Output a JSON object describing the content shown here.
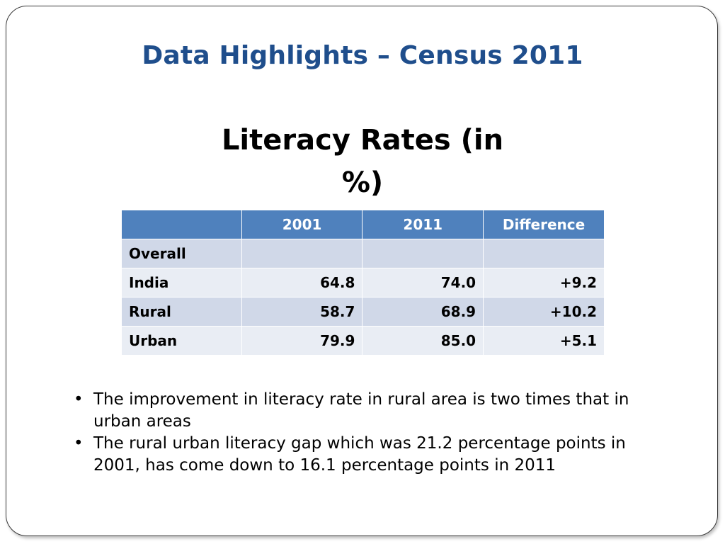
{
  "slide": {
    "title": "Data Highlights – Census 2011",
    "subtitle": "Literacy Rates (in %)"
  },
  "table": {
    "headers": [
      "",
      "2001",
      "2011",
      "Difference"
    ],
    "rows": [
      {
        "label": "Overall",
        "y2001": "",
        "y2011": "",
        "difference": ""
      },
      {
        "label": "India",
        "y2001": "64.8",
        "y2011": "74.0",
        "difference": "+9.2"
      },
      {
        "label": "Rural",
        "y2001": "58.7",
        "y2011": "68.9",
        "difference": "+10.2"
      },
      {
        "label": "Urban",
        "y2001": "79.9",
        "y2011": "85.0",
        "difference": "+5.1"
      }
    ]
  },
  "bullets": [
    "The improvement in literacy rate in rural area is two times that in urban areas",
    "The rural urban literacy gap which was 21.2 percentage points in 2001, has come down to 16.1 percentage points in 2011"
  ],
  "colors": {
    "title": "#1f4e8c",
    "header_fill": "#4f81bd",
    "row_fill_a": "#d0d8e8",
    "row_fill_b": "#e9edf4"
  }
}
